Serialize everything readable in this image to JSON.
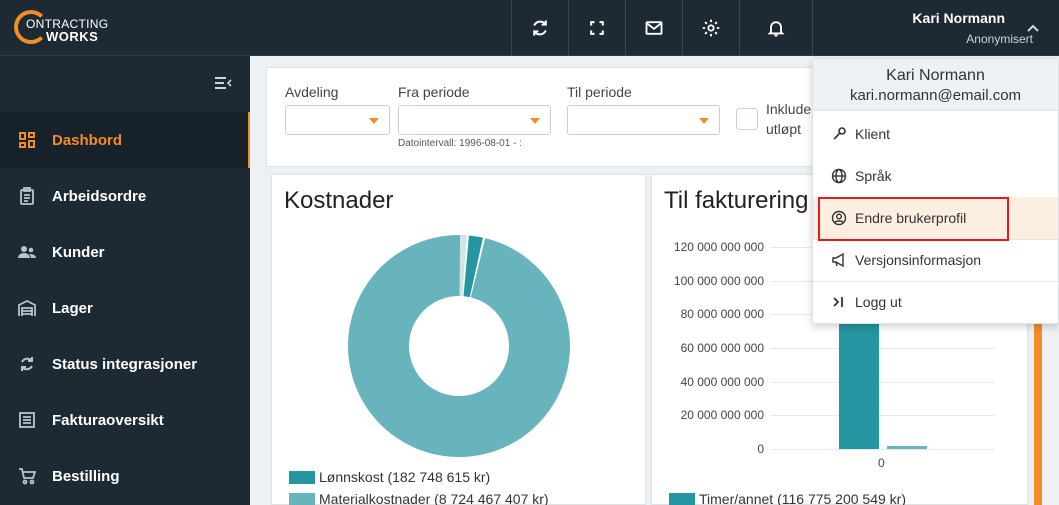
{
  "header": {
    "logo_line1": "ONTRACTING",
    "logo_line2": "WORKS",
    "user_name": "Kari Normann",
    "user_role": "Anonymisert"
  },
  "icons": {
    "sync": "sync-icon",
    "fullscreen": "fullscreen-icon",
    "mail": "mail-icon",
    "settings": "gear-icon",
    "notifications": "bell-icon",
    "chevron": "chevron-up-icon"
  },
  "sidebar": {
    "items": [
      {
        "label": "Dashbord",
        "active": true
      },
      {
        "label": "Arbeidsordre"
      },
      {
        "label": "Kunder"
      },
      {
        "label": "Lager"
      },
      {
        "label": "Status integrasjoner"
      },
      {
        "label": "Fakturaoversikt"
      },
      {
        "label": "Bestilling"
      }
    ]
  },
  "filters": {
    "avdeling_label": "Avdeling",
    "fra_label": "Fra periode",
    "til_label": "Til periode",
    "dato_note": "Datointervall: 1996-08-01 - :",
    "include_label_1": "Inklude",
    "include_label_2": "utløpt"
  },
  "kostnader": {
    "title": "Kostnader",
    "legend": [
      {
        "label": "Lønnskost (182 748 615 kr)",
        "color": "#2596a1"
      },
      {
        "label": "Materialkostnader (8 724 467 407 kr)",
        "color": "#67b4bd"
      }
    ]
  },
  "fakturering": {
    "title": "Til fakturering",
    "x_tick": "0",
    "legend": [
      {
        "label": "Timer/annet (116 775 200 549 kr)",
        "color": "#2596a1"
      }
    ]
  },
  "chart_data": [
    {
      "type": "pie",
      "title": "Kostnader",
      "categories": [
        "Lønnskost",
        "Materialkostnader"
      ],
      "values": [
        182748615,
        8724467407
      ],
      "colors": [
        "#2596a1",
        "#67b4bd"
      ],
      "donut": true
    },
    {
      "type": "bar",
      "title": "Til fakturering",
      "categories": [
        "0"
      ],
      "series": [
        {
          "name": "Timer/annet",
          "values": [
            116775200549
          ]
        },
        {
          "name": "",
          "values": [
            1500000000
          ]
        }
      ],
      "y_ticks": [
        "0",
        "20 000 000 000",
        "40 000 000 000",
        "60 000 000 000",
        "80 000 000 000",
        "100 000 000 000",
        "120 000 000 000"
      ],
      "ylim": [
        0,
        120000000000
      ],
      "legend_position": "bottom"
    }
  ],
  "user_menu": {
    "name": "Kari Normann",
    "email": "kari.normann@email.com",
    "items": [
      {
        "label": "Klient",
        "icon": "wrench-icon"
      },
      {
        "label": "Språk",
        "icon": "globe-icon"
      },
      {
        "label": "Endre brukerprofil",
        "icon": "user-circle-icon",
        "highlighted": true
      },
      {
        "label": "Versjonsinformasjon",
        "icon": "megaphone-icon"
      },
      {
        "label": "Logg ut",
        "icon": "logout-icon"
      }
    ]
  }
}
